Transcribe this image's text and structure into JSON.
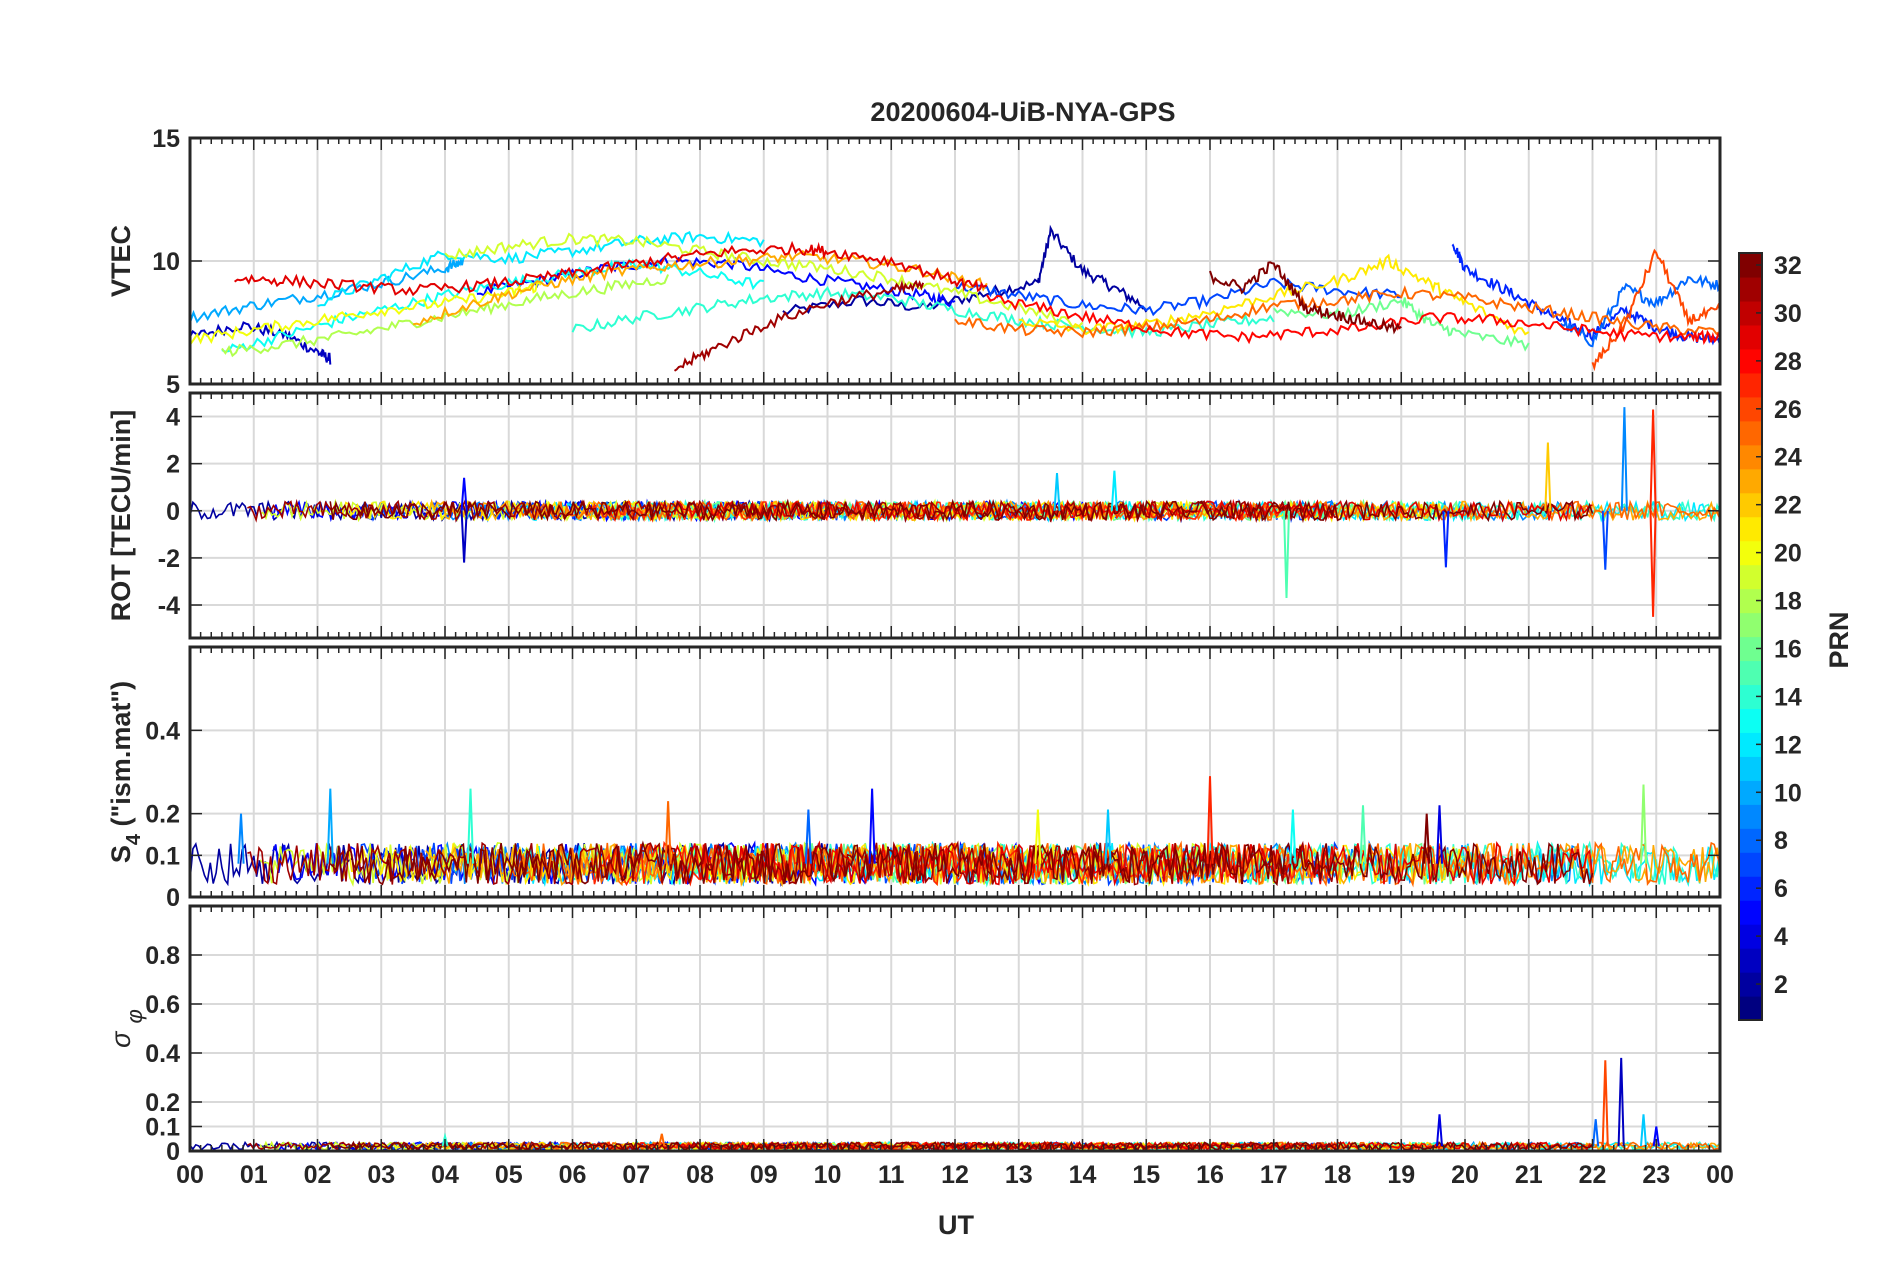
{
  "title": "20200604-UiB-NYA-GPS",
  "chart_data": {
    "type": "line",
    "title": "20200604-UiB-NYA-GPS",
    "xlabel": "UT",
    "xlim": [
      0,
      24
    ],
    "x_ticks": [
      0,
      1,
      2,
      3,
      4,
      5,
      6,
      7,
      8,
      9,
      10,
      11,
      12,
      13,
      14,
      15,
      16,
      17,
      18,
      19,
      20,
      21,
      22,
      23,
      24
    ],
    "x_tick_labels": [
      "00",
      "01",
      "02",
      "03",
      "04",
      "05",
      "06",
      "07",
      "08",
      "09",
      "10",
      "11",
      "12",
      "13",
      "14",
      "15",
      "16",
      "17",
      "18",
      "19",
      "20",
      "21",
      "22",
      "23",
      "00"
    ],
    "colorbar": {
      "label": "PRN",
      "colormap": "jet",
      "clim": [
        1,
        32
      ],
      "ticks": [
        2,
        4,
        6,
        8,
        10,
        12,
        14,
        16,
        18,
        20,
        22,
        24,
        26,
        28,
        30,
        32
      ],
      "tick_labels": [
        "2",
        "4",
        "6",
        "8",
        "10",
        "12",
        "14",
        "16",
        "18",
        "20",
        "22",
        "24",
        "26",
        "28",
        "30",
        "32"
      ]
    },
    "panels": [
      {
        "id": "vtec",
        "ylabel": "VTEC",
        "ylim": [
          5,
          15
        ],
        "y_ticks": [
          5,
          10,
          15
        ],
        "y_tick_labels": [
          "5",
          "10",
          "15"
        ],
        "grid": true,
        "series": [
          {
            "prn": 2,
            "x": [
              9.3,
              10.5,
              11.5,
              12.5,
              13.3,
              13.5,
              14,
              14.5,
              15
            ],
            "y": [
              7.9,
              8.4,
              8.1,
              8.7,
              9.1,
              11.2,
              9.6,
              8.9,
              8.1
            ]
          },
          {
            "prn": 3,
            "x": [
              0,
              0.8,
              1.5,
              2,
              2.2
            ],
            "y": [
              6.9,
              7.4,
              7.0,
              6.3,
              6.0
            ]
          },
          {
            "prn": 5,
            "x": [
              4.5,
              5.5,
              6.5,
              7.5,
              8.5,
              9.5,
              10.5,
              11.5,
              12
            ],
            "y": [
              8.7,
              9.2,
              9.7,
              10.0,
              9.9,
              9.4,
              9.0,
              8.6,
              8.3
            ]
          },
          {
            "prn": 6,
            "x": [
              19.8,
              20,
              20.5,
              21,
              21.5,
              22,
              22.5,
              23,
              23.5,
              24
            ],
            "y": [
              10.8,
              9.7,
              9.0,
              8.3,
              7.6,
              7.0,
              8.0,
              7.3,
              6.9,
              6.8
            ]
          },
          {
            "prn": 7,
            "x": [
              12,
              13,
              14,
              15,
              16,
              17,
              18,
              19
            ],
            "y": [
              9.0,
              8.6,
              8.2,
              8.0,
              8.4,
              9.1,
              8.8,
              8.6
            ]
          },
          {
            "prn": 8,
            "x": [
              21.5,
              22,
              22.5,
              23,
              23.5,
              24
            ],
            "y": [
              7.5,
              6.7,
              8.9,
              8.3,
              9.3,
              9.0
            ]
          },
          {
            "prn": 10,
            "x": [
              0,
              1,
              2,
              3,
              4,
              4.3
            ],
            "y": [
              7.7,
              8.2,
              8.6,
              9.1,
              9.7,
              10.0
            ]
          },
          {
            "prn": 12,
            "x": [
              2,
              3,
              4,
              5,
              6,
              7,
              8,
              9
            ],
            "y": [
              8.3,
              9.3,
              10.3,
              10.1,
              10.4,
              10.8,
              11.0,
              10.8
            ]
          },
          {
            "prn": 13,
            "x": [
              0.5,
              1.5,
              2.5,
              3.5,
              4.5,
              5.5,
              6.5,
              7,
              8,
              9
            ],
            "y": [
              6.3,
              7.0,
              7.7,
              8.3,
              8.9,
              9.3,
              9.7,
              9.9,
              9.5,
              9.0
            ]
          },
          {
            "prn": 14,
            "x": [
              6,
              7,
              8,
              9,
              10,
              11,
              12,
              13,
              14,
              15,
              16,
              17
            ],
            "y": [
              7.2,
              7.7,
              8.1,
              8.5,
              8.7,
              8.5,
              8.0,
              7.6,
              7.3,
              7.1,
              7.4,
              7.7
            ]
          },
          {
            "prn": 16,
            "x": [
              17,
              18,
              19,
              19.5,
              20,
              21
            ],
            "y": [
              8.0,
              7.8,
              8.4,
              7.4,
              7.0,
              6.6
            ]
          },
          {
            "prn": 18,
            "x": [
              0.5,
              1.5,
              2.5,
              3.5,
              4.5,
              5.5,
              6.5,
              7.5
            ],
            "y": [
              6.3,
              6.6,
              7.0,
              7.5,
              8.0,
              8.5,
              8.9,
              9.3
            ]
          },
          {
            "prn": 19,
            "x": [
              4,
              5,
              6,
              7,
              8,
              9,
              10,
              11,
              12,
              13,
              14
            ],
            "y": [
              10.2,
              10.6,
              10.9,
              10.8,
              10.4,
              10.0,
              9.7,
              9.3,
              8.7,
              8.1,
              7.4
            ]
          },
          {
            "prn": 20,
            "x": [
              0,
              1,
              2,
              3,
              4,
              5,
              5.5
            ],
            "y": [
              6.8,
              7.2,
              7.6,
              8.0,
              8.3,
              8.7,
              9.0
            ]
          },
          {
            "prn": 21,
            "x": [
              13,
              14,
              15,
              16,
              17,
              18,
              18.8,
              19.5,
              20,
              21
            ],
            "y": [
              7.6,
              7.2,
              7.4,
              7.9,
              8.6,
              9.2,
              10.0,
              9.0,
              8.3,
              7.0
            ]
          },
          {
            "prn": 23,
            "x": [
              3.5,
              4.5,
              5.5,
              6.5,
              7.5,
              8.5,
              9.5,
              10.5,
              11.5,
              12.5
            ],
            "y": [
              7.5,
              8.3,
              9.0,
              9.5,
              9.8,
              10.0,
              10.2,
              10.0,
              9.6,
              9.0
            ]
          },
          {
            "prn": 25,
            "x": [
              12,
              13,
              14,
              15,
              16,
              17,
              18,
              19,
              20,
              21,
              22,
              23,
              24
            ],
            "y": [
              7.6,
              7.2,
              7.1,
              7.3,
              7.6,
              8.2,
              8.4,
              8.7,
              8.5,
              8.1,
              7.7,
              7.3,
              7.1
            ]
          },
          {
            "prn": 26,
            "x": [
              22,
              22.5,
              23,
              23.5,
              24
            ],
            "y": [
              5.7,
              7.4,
              10.4,
              7.6,
              8.0
            ]
          },
          {
            "prn": 28,
            "x": [
              12.5,
              13.5,
              14.5,
              15.5,
              16.5,
              17.5,
              18.5,
              19.5,
              20.5,
              21.5,
              22.5,
              23.5,
              24
            ],
            "y": [
              8.5,
              8.0,
              7.5,
              7.1,
              6.9,
              7.1,
              7.3,
              7.7,
              7.6,
              7.3,
              7.0,
              6.9,
              6.9
            ]
          },
          {
            "prn": 29,
            "x": [
              0.7,
              1.5,
              2.5,
              3.5,
              4.5,
              5.5,
              6.5,
              7.5,
              8.5,
              9.5,
              10,
              11,
              12,
              12.5
            ],
            "y": [
              9.3,
              9.2,
              9.0,
              8.8,
              9.0,
              9.3,
              9.7,
              10.1,
              10.4,
              10.5,
              10.4,
              10.0,
              9.2,
              8.8
            ]
          },
          {
            "prn": 31,
            "x": [
              7.6,
              8.2,
              9,
              10,
              11,
              11.5
            ],
            "y": [
              5.6,
              6.4,
              7.4,
              8.3,
              8.8,
              9.0
            ]
          },
          {
            "prn": 32,
            "x": [
              16,
              16.5,
              17,
              17.5,
              18,
              18.5,
              19
            ],
            "y": [
              9.4,
              8.9,
              9.9,
              8.1,
              7.8,
              7.5,
              7.2
            ]
          }
        ]
      },
      {
        "id": "rot",
        "ylabel": "ROT [TECU/min]",
        "ylim": [
          -5.4,
          5.0
        ],
        "y_ticks": [
          -4,
          -2,
          0,
          2,
          4
        ],
        "y_tick_labels": [
          "-4",
          "-2",
          "0",
          "2",
          "4"
        ],
        "grid": true,
        "baseline_value": 0,
        "typical_amplitude": 0.4,
        "notable_spikes": [
          {
            "prn": 3,
            "x": 4.3,
            "y": -2.2
          },
          {
            "prn": 5,
            "x": 4.3,
            "y": 1.4
          },
          {
            "prn": 15,
            "x": 17.2,
            "y": -3.7
          },
          {
            "prn": 6,
            "x": 19.7,
            "y": -2.4
          },
          {
            "prn": 22,
            "x": 21.3,
            "y": 2.9
          },
          {
            "prn": 7,
            "x": 22.2,
            "y": -2.5
          },
          {
            "prn": 9,
            "x": 22.5,
            "y": 4.4
          },
          {
            "prn": 27,
            "x": 22.95,
            "y": 4.3
          },
          {
            "prn": 27,
            "x": 22.95,
            "y": -4.5
          },
          {
            "prn": 12,
            "x": 14.5,
            "y": 1.7
          },
          {
            "prn": 11,
            "x": 13.6,
            "y": 1.6
          }
        ]
      },
      {
        "id": "s4",
        "ylabel": "S_4 (\"ism.mat\")",
        "ylabel_main": "S",
        "ylabel_sub": "4",
        "ylabel_rest": " (\"ism.mat\")",
        "ylim": [
          0,
          0.6
        ],
        "y_ticks": [
          0,
          0.1,
          0.2,
          0.4
        ],
        "y_tick_labels": [
          "0",
          "0.1",
          "0.2",
          "0.4"
        ],
        "grid": true,
        "baseline_value": 0.08,
        "typical_amplitude": 0.05,
        "notable_spikes": [
          {
            "prn": 9,
            "x": 0.8,
            "y": 0.2
          },
          {
            "prn": 10,
            "x": 2.2,
            "y": 0.26
          },
          {
            "prn": 14,
            "x": 4.4,
            "y": 0.26
          },
          {
            "prn": 25,
            "x": 7.5,
            "y": 0.23
          },
          {
            "prn": 8,
            "x": 9.7,
            "y": 0.21
          },
          {
            "prn": 5,
            "x": 10.7,
            "y": 0.26
          },
          {
            "prn": 20,
            "x": 13.3,
            "y": 0.21
          },
          {
            "prn": 11,
            "x": 14.4,
            "y": 0.21
          },
          {
            "prn": 27,
            "x": 16.0,
            "y": 0.29
          },
          {
            "prn": 32,
            "x": 19.4,
            "y": 0.2
          },
          {
            "prn": 4,
            "x": 19.6,
            "y": 0.22
          },
          {
            "prn": 13,
            "x": 17.3,
            "y": 0.21
          },
          {
            "prn": 15,
            "x": 18.4,
            "y": 0.22
          },
          {
            "prn": 17,
            "x": 22.8,
            "y": 0.27
          }
        ]
      },
      {
        "id": "sigma_phi",
        "ylabel": "σ_φ",
        "ylabel_main": "σ",
        "ylabel_sub": "φ",
        "ylim": [
          0,
          1.0
        ],
        "y_ticks": [
          0,
          0.1,
          0.2,
          0.4,
          0.6,
          0.8
        ],
        "y_tick_labels": [
          "0",
          "0.1",
          "0.2",
          "0.4",
          "0.6",
          "0.8"
        ],
        "grid": true,
        "baseline_value": 0.02,
        "typical_amplitude": 0.015,
        "notable_spikes": [
          {
            "prn": 4,
            "x": 19.6,
            "y": 0.15
          },
          {
            "prn": 26,
            "x": 22.2,
            "y": 0.37
          },
          {
            "prn": 3,
            "x": 22.45,
            "y": 0.38
          },
          {
            "prn": 8,
            "x": 22.05,
            "y": 0.13
          },
          {
            "prn": 11,
            "x": 22.8,
            "y": 0.15
          },
          {
            "prn": 5,
            "x": 23.0,
            "y": 0.1
          },
          {
            "prn": 25,
            "x": 7.4,
            "y": 0.07
          },
          {
            "prn": 14,
            "x": 4.0,
            "y": 0.06
          }
        ]
      }
    ]
  }
}
